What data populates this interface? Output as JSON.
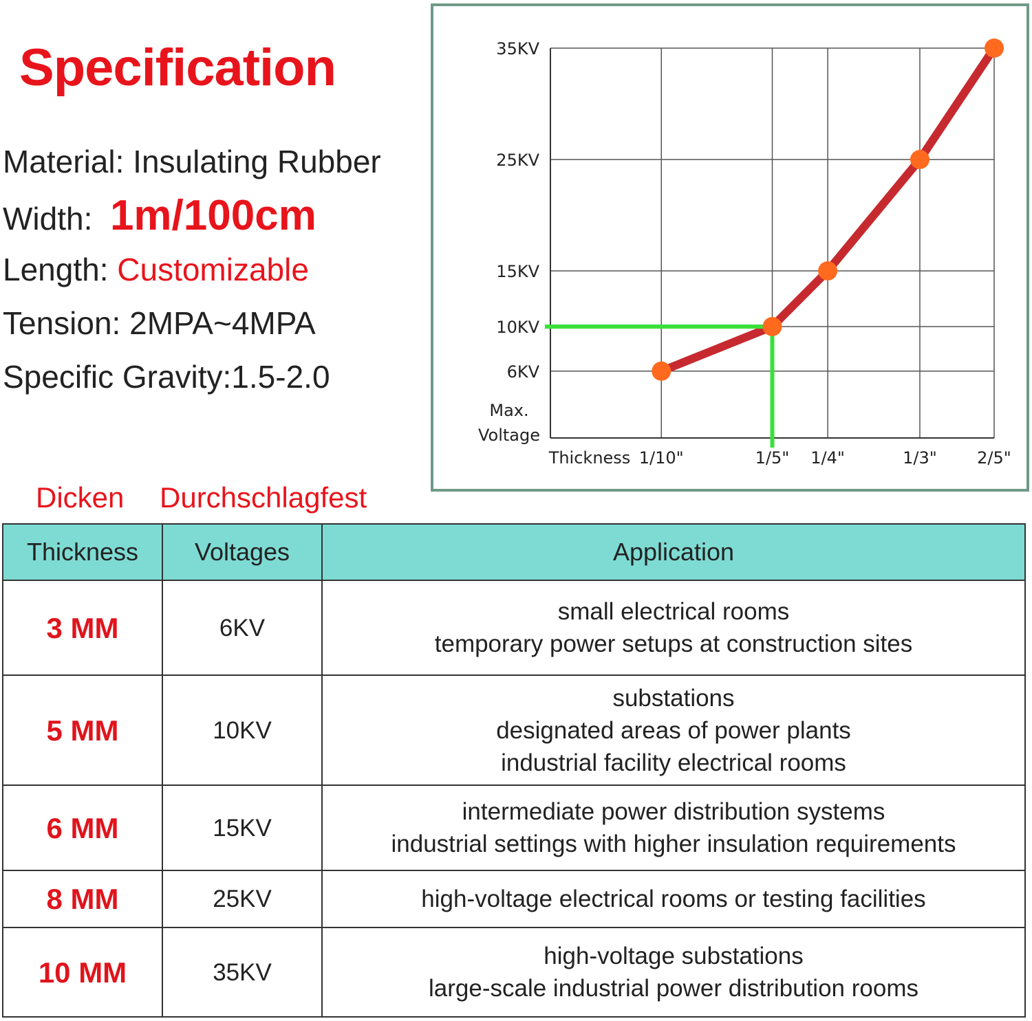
{
  "spec": {
    "title": "Specification",
    "items": [
      {
        "label": "Material:",
        "value": "Insulating Rubber"
      },
      {
        "label": "Width:",
        "value": "1m/100cm"
      },
      {
        "label": "Length:",
        "value": "Customizable"
      },
      {
        "label": "Tension:",
        "value": "2MPA~4MPA"
      },
      {
        "label": "Specific Gravity:",
        "value": "1.5-2.0"
      }
    ],
    "german_labels": [
      "Dicken",
      "Durchschlagfest"
    ]
  },
  "chart_data": {
    "type": "line",
    "xlabel": "Thickness",
    "ylabel": [
      "Max.",
      "Voltage"
    ],
    "x": [
      0.1,
      0.2,
      0.25,
      0.333,
      0.4
    ],
    "values": [
      6,
      10,
      15,
      25,
      35
    ],
    "color": "#c62a2f",
    "marker_color": "#ff6a1f",
    "xlim": [
      0,
      0.4
    ],
    "ylim": [
      0,
      35
    ],
    "xticks": [
      {
        "value": 0.1,
        "label": "1/10\""
      },
      {
        "value": 0.2,
        "label": "1/5\""
      },
      {
        "value": 0.25,
        "label": "1/4\""
      },
      {
        "value": 0.333,
        "label": "1/3\""
      },
      {
        "value": 0.4,
        "label": "2/5\""
      }
    ],
    "yticks": [
      {
        "value": 6,
        "label": "6KV"
      },
      {
        "value": 10,
        "label": "10KV"
      },
      {
        "value": 15,
        "label": "15KV"
      },
      {
        "value": 25,
        "label": "25KV"
      },
      {
        "value": 35,
        "label": "35KV"
      }
    ],
    "grid": true,
    "highlight_point": 1,
    "highlight_color": "#3be03b"
  },
  "table": {
    "header": [
      "Thickness",
      "Voltages",
      "Application"
    ],
    "rows": [
      [
        "3 MM",
        "6KV",
        [
          "small electrical rooms",
          "temporary power setups at construction sites"
        ]
      ],
      [
        "5 MM",
        "10KV",
        [
          "substations",
          "designated areas of power plants",
          "industrial facility electrical rooms"
        ]
      ],
      [
        "6 MM",
        "15KV",
        [
          "intermediate power distribution systems",
          "industrial settings with higher insulation requirements"
        ]
      ],
      [
        "8 MM",
        "25KV",
        [
          "high-voltage electrical rooms or testing facilities"
        ]
      ],
      [
        "10 MM",
        "35KV",
        [
          "high-voltage substations",
          "large-scale industrial power distribution rooms"
        ]
      ]
    ]
  }
}
